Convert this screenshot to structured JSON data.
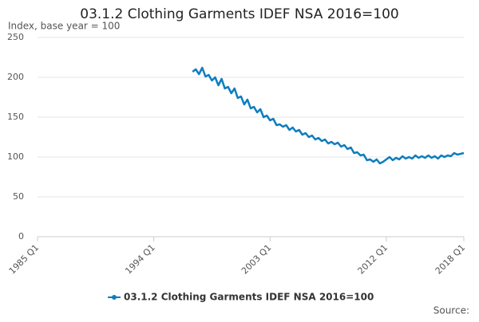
{
  "chart_data": {
    "type": "line",
    "title": "03.1.2 Clothing Garments IDEF NSA 2016=100",
    "subtitle": "Index, base year = 100",
    "source": "Source:",
    "x": [
      1997,
      1997.25,
      1997.5,
      1997.75,
      1998,
      1998.25,
      1998.5,
      1998.75,
      1999,
      1999.25,
      1999.5,
      1999.75,
      2000,
      2000.25,
      2000.5,
      2000.75,
      2001,
      2001.25,
      2001.5,
      2001.75,
      2002,
      2002.25,
      2002.5,
      2002.75,
      2003,
      2003.25,
      2003.5,
      2003.75,
      2004,
      2004.25,
      2004.5,
      2004.75,
      2005,
      2005.25,
      2005.5,
      2005.75,
      2006,
      2006.25,
      2006.5,
      2006.75,
      2007,
      2007.25,
      2007.5,
      2007.75,
      2008,
      2008.25,
      2008.5,
      2008.75,
      2009,
      2009.25,
      2009.5,
      2009.75,
      2010,
      2010.25,
      2010.5,
      2010.75,
      2011,
      2011.25,
      2011.5,
      2011.75,
      2012,
      2012.25,
      2012.5,
      2012.75,
      2013,
      2013.25,
      2013.5,
      2013.75,
      2014,
      2014.25,
      2014.5,
      2014.75,
      2015,
      2015.25,
      2015.5,
      2015.75,
      2016,
      2016.25,
      2016.5,
      2016.75,
      2017,
      2017.25,
      2017.5,
      2017.75,
      2018
    ],
    "series": [
      {
        "name": "03.1.2 Clothing Garments IDEF NSA 2016=100",
        "color": "#0f7dbf",
        "values": [
          207,
          210,
          204,
          212,
          201,
          203,
          196,
          200,
          190,
          198,
          186,
          188,
          180,
          186,
          174,
          176,
          166,
          172,
          161,
          163,
          156,
          160,
          150,
          152,
          146,
          148,
          140,
          141,
          138,
          140,
          134,
          137,
          132,
          134,
          128,
          130,
          125,
          127,
          122,
          124,
          120,
          122,
          117,
          119,
          116,
          118,
          113,
          115,
          110,
          112,
          105,
          106,
          102,
          103,
          96,
          97,
          94,
          97,
          92,
          94,
          97,
          100,
          96,
          99,
          97,
          101,
          98,
          100,
          98,
          102,
          99,
          101,
          99,
          102,
          99,
          101,
          98,
          102,
          100,
          102,
          101,
          105,
          103,
          104,
          105
        ]
      }
    ],
    "xlim": [
      1985,
      2018
    ],
    "xticks": [
      {
        "value": 1985,
        "label": "1985 Q1"
      },
      {
        "value": 1994,
        "label": "1994 Q1"
      },
      {
        "value": 2003,
        "label": "2003 Q1"
      },
      {
        "value": 2012,
        "label": "2012 Q1"
      },
      {
        "value": 2018,
        "label": "2018 Q1"
      }
    ],
    "ylim": [
      0,
      250
    ],
    "yticks": [
      0,
      50,
      100,
      150,
      200,
      250
    ],
    "grid": true
  }
}
